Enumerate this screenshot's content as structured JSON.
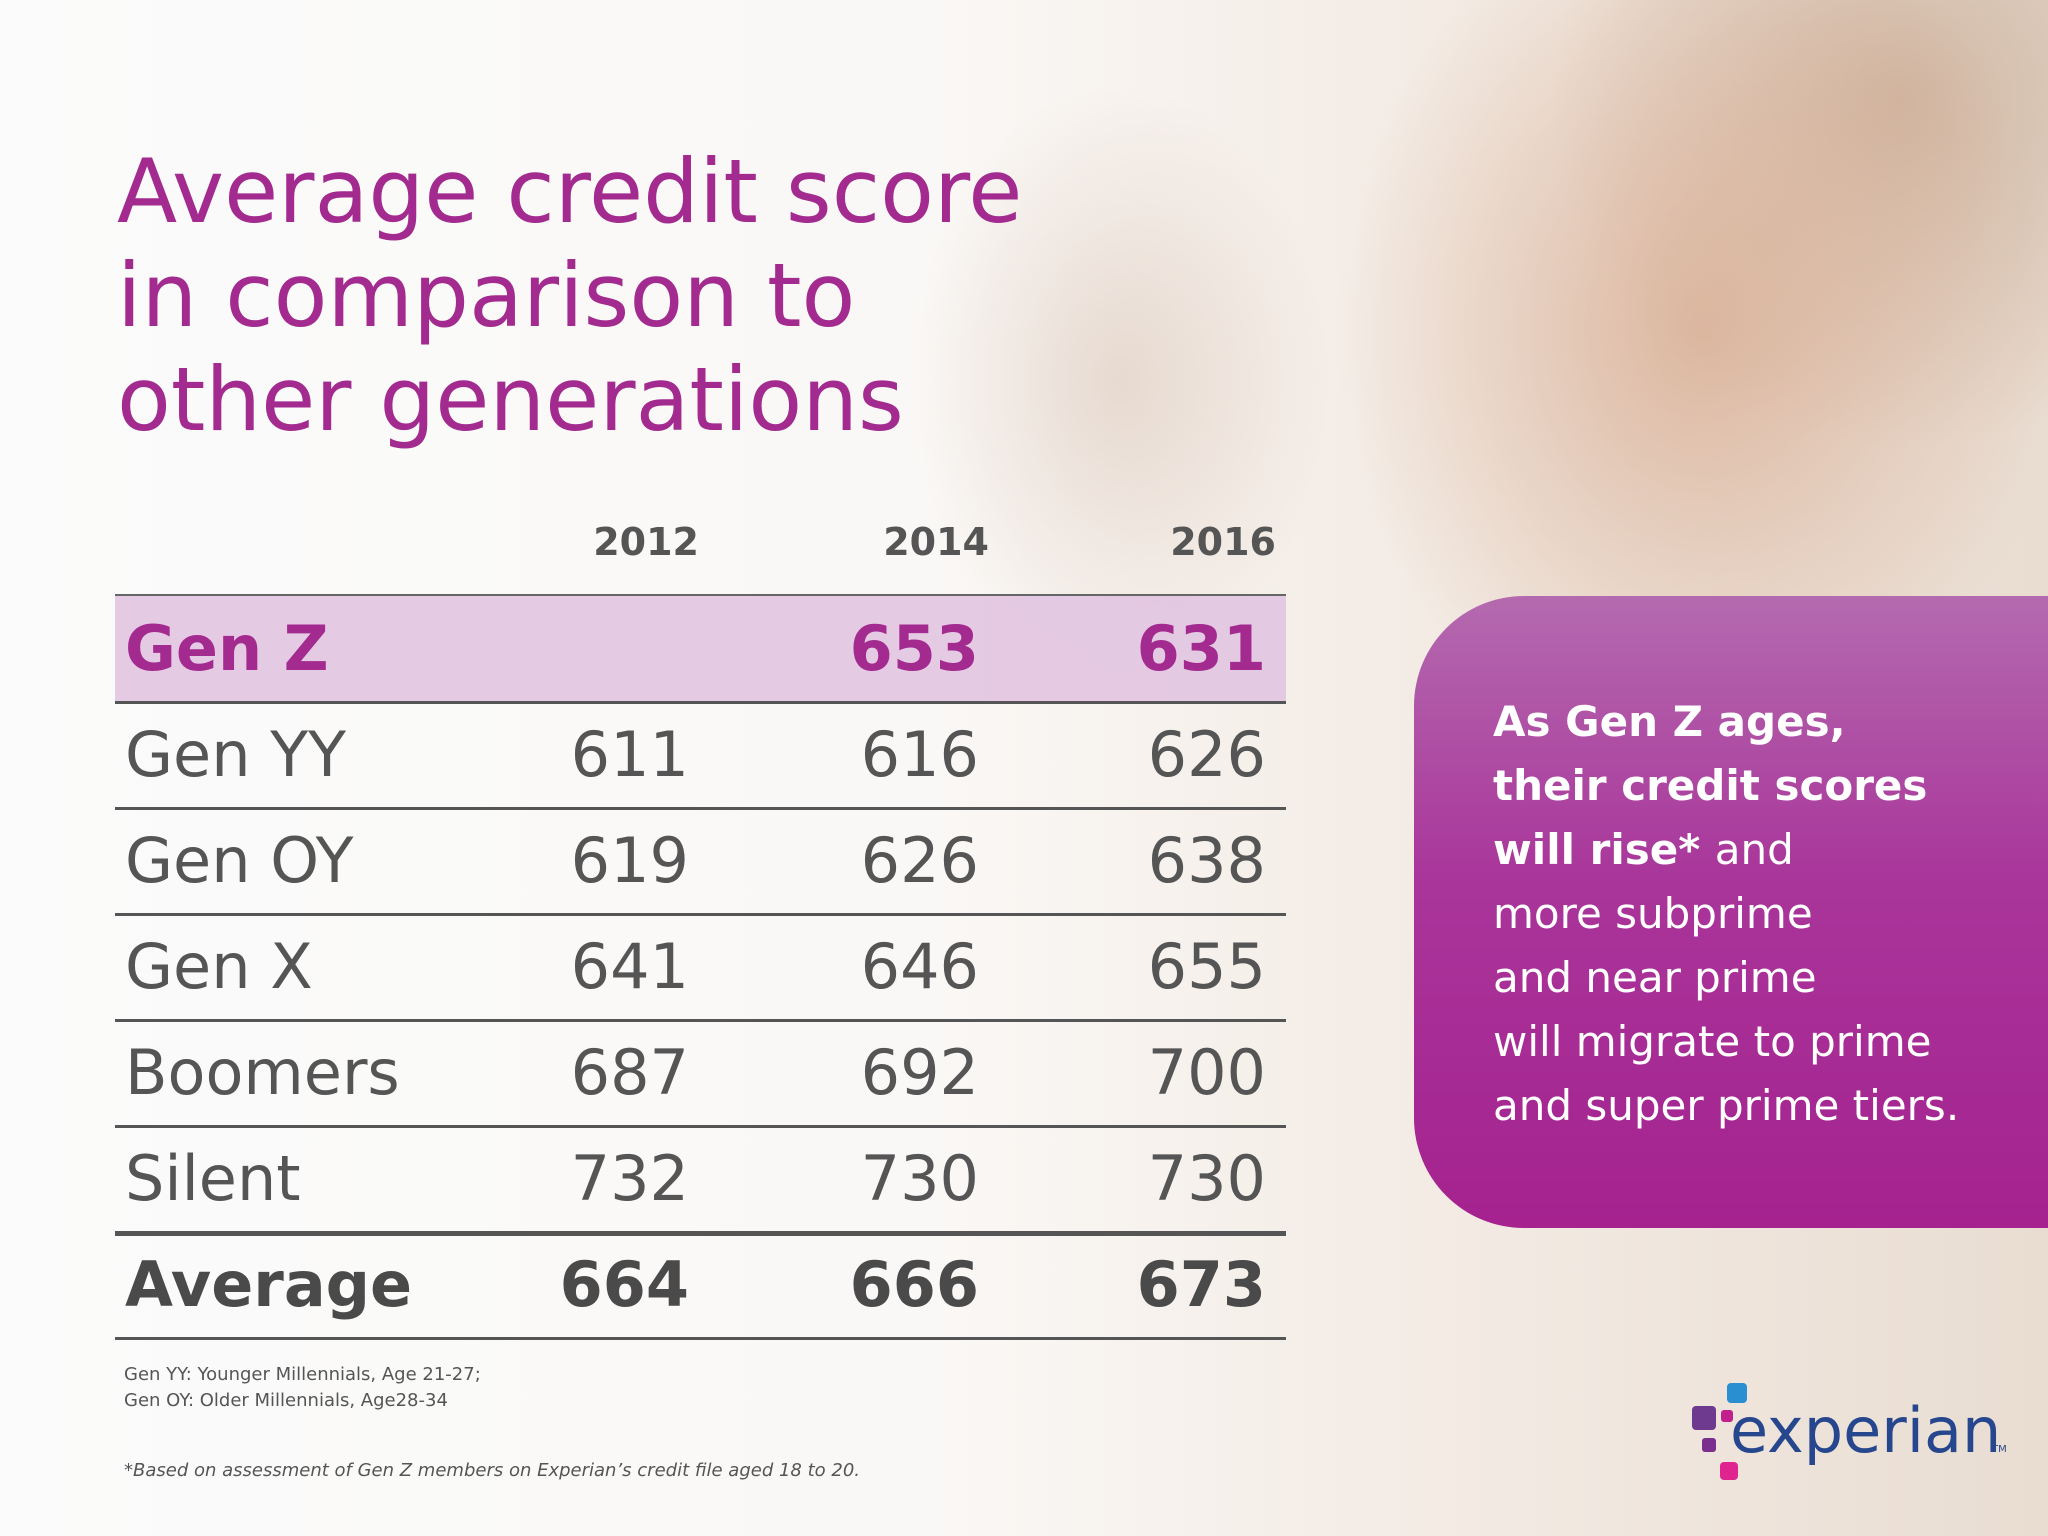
{
  "title": {
    "lines": [
      "Average credit score",
      "in comparison to",
      "other generations"
    ]
  },
  "table": {
    "columns": [
      "2012",
      "2014",
      "2016"
    ],
    "rows": [
      {
        "label": "Gen Z",
        "values": [
          null,
          653,
          631
        ]
      },
      {
        "label": "Gen YY",
        "values": [
          611,
          616,
          626
        ]
      },
      {
        "label": "Gen OY",
        "values": [
          619,
          626,
          638
        ]
      },
      {
        "label": "Gen X",
        "values": [
          641,
          646,
          655
        ]
      },
      {
        "label": "Boomers",
        "values": [
          687,
          692,
          700
        ]
      },
      {
        "label": "Silent",
        "values": [
          732,
          730,
          730
        ]
      },
      {
        "label": "Average",
        "values": [
          664,
          666,
          673
        ]
      }
    ]
  },
  "footnotes": {
    "definitions": [
      "Gen YY:  Younger Millennials, Age 21-27;",
      "Gen OY:  Older Millennials, Age28-34"
    ],
    "note": "*Based on assessment of Gen Z members on Experian’s credit file aged 18 to 20."
  },
  "callout": {
    "bold_lines": [
      "As Gen Z ages,",
      "their credit scores",
      "will rise*"
    ],
    "plain_lines": [
      "and",
      "more subprime",
      "and near prime",
      "will migrate to prime",
      "and super prime tiers."
    ]
  },
  "logo": {
    "text": "experian",
    "mark": "TM"
  }
}
